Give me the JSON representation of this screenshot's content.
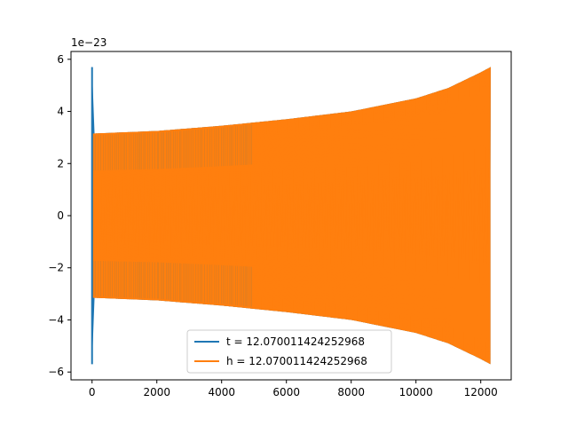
{
  "chart_data": {
    "type": "line",
    "title": "",
    "xlabel": "",
    "ylabel": "",
    "y_offset_label": "1e−23",
    "xlim": [
      -650,
      12940
    ],
    "ylim": [
      -6.3,
      6.3
    ],
    "x_ticks": [
      0,
      2000,
      4000,
      6000,
      8000,
      10000,
      12000
    ],
    "x_tick_labels": [
      "0",
      "2000",
      "4000",
      "6000",
      "8000",
      "10000",
      "12000"
    ],
    "y_ticks": [
      -6,
      -4,
      -2,
      0,
      2,
      4,
      6
    ],
    "y_tick_labels": [
      "−6",
      "−4",
      "−2",
      "0",
      "2",
      "4",
      "6"
    ],
    "grid": false,
    "legend_position": "lower-center",
    "series": [
      {
        "name": "t = 12.070011424252968",
        "color": "#1f77b4",
        "x_range": [
          0,
          12300
        ],
        "envelope_x": [
          0,
          20,
          40,
          2000,
          4000,
          6000,
          8000,
          10000,
          11000,
          12000,
          12300
        ],
        "envelope_upper": [
          5.7,
          3.15,
          3.15,
          3.25,
          3.45,
          3.7,
          4.0,
          4.5,
          4.9,
          5.5,
          5.7
        ],
        "envelope_lower": [
          -5.7,
          -3.15,
          -3.15,
          -3.25,
          -3.45,
          -3.7,
          -4.0,
          -4.5,
          -4.9,
          -5.5,
          -5.7
        ]
      },
      {
        "name": "h = 12.070011424252968",
        "color": "#ff7f0e",
        "x_range": [
          0,
          12300
        ],
        "envelope_x": [
          0,
          2000,
          4000,
          6000,
          8000,
          10000,
          11000,
          12000,
          12300
        ],
        "envelope_upper": [
          3.15,
          3.25,
          3.45,
          3.7,
          4.0,
          4.5,
          4.9,
          5.5,
          5.7
        ],
        "envelope_lower": [
          -3.15,
          -3.25,
          -3.45,
          -3.7,
          -4.0,
          -4.5,
          -4.9,
          -5.5,
          -5.7
        ]
      }
    ]
  }
}
